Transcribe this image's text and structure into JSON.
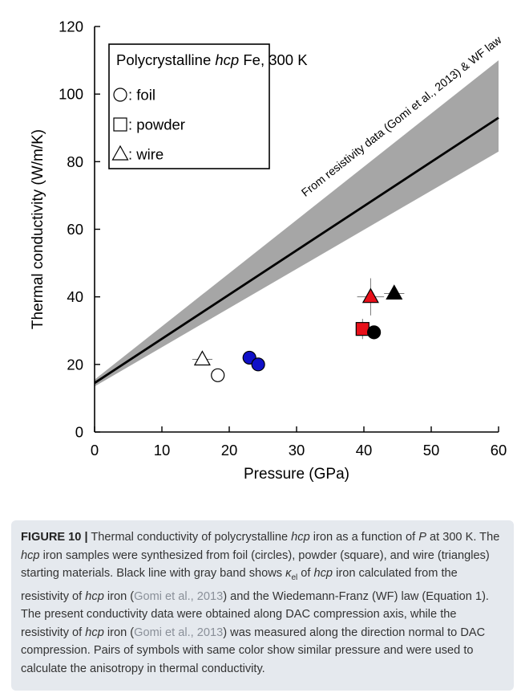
{
  "chart_data": {
    "type": "scatter",
    "xlabel": "Pressure (GPa)",
    "ylabel": "Thermal conductivity (W/m/K)",
    "xlim": [
      0,
      60
    ],
    "ylim": [
      0,
      120
    ],
    "xticks": [
      0,
      10,
      20,
      30,
      40,
      50,
      60
    ],
    "yticks": [
      0,
      20,
      40,
      60,
      80,
      100,
      120
    ],
    "grid": false,
    "legend": {
      "position": "top-left",
      "title": {
        "prefix": "Polycrystalline ",
        "italic": "hcp",
        "suffix": " Fe, 300 K"
      },
      "entries": [
        {
          "marker": "circle",
          "label": ": foil"
        },
        {
          "marker": "square",
          "label": ": powder"
        },
        {
          "marker": "triangle",
          "label": ": wire"
        }
      ]
    },
    "model": {
      "label": "From resistivity data (Gomi et al., 2013) & WF law",
      "line": {
        "x": [
          0,
          60
        ],
        "y": [
          14.5,
          93
        ]
      },
      "band_upper": {
        "x": [
          0,
          60
        ],
        "y": [
          15.5,
          110
        ]
      },
      "band_lower": {
        "x": [
          0,
          60
        ],
        "y": [
          13.5,
          83
        ]
      },
      "line_color": "#000000",
      "band_color": "#a6a6a6"
    },
    "series": [
      {
        "marker": "triangle",
        "color": "#ffffff",
        "x": 16.0,
        "y": 21.5,
        "xerr": 1.5,
        "yerr": 0
      },
      {
        "marker": "circle",
        "color": "#ffffff",
        "x": 18.3,
        "y": 16.8,
        "xerr": 0,
        "yerr": 0
      },
      {
        "marker": "circle",
        "color": "#1010c8",
        "x": 23.0,
        "y": 22.0,
        "xerr": 0,
        "yerr": 0
      },
      {
        "marker": "circle",
        "color": "#1010c8",
        "x": 24.3,
        "y": 20.0,
        "xerr": 0,
        "yerr": 0
      },
      {
        "marker": "square",
        "color": "#e8101a",
        "x": 39.8,
        "y": 30.5,
        "xerr": 0,
        "yerr": 3.0
      },
      {
        "marker": "circle",
        "color": "#000000",
        "x": 41.5,
        "y": 29.5,
        "xerr": 0,
        "yerr": 0
      },
      {
        "marker": "triangle",
        "color": "#e8101a",
        "x": 41.0,
        "y": 40.0,
        "xerr": 2.0,
        "yerr": 5.5
      },
      {
        "marker": "triangle",
        "color": "#000000",
        "x": 44.5,
        "y": 41.0,
        "xerr": 1.5,
        "yerr": 0
      }
    ]
  },
  "caption": {
    "label": "FIGURE 10 |",
    "s1": " Thermal conductivity of polycrystalline ",
    "i1": "hcp",
    "s2": " iron as a function of ",
    "i2": "P",
    "s3": " at 300 K. The ",
    "i3": "hcp",
    "s4": " iron samples were synthesized from foil (circles), powder (square), and wire (triangles) starting materials. Black line with gray band shows ",
    "kappa": "κ",
    "kappa_sub": "el",
    "s5": " of ",
    "i4": "hcp",
    "s6": " iron calculated from the resistivity of ",
    "i5": "hcp",
    "s7": " iron (",
    "ref1": "Gomi et al., 2013",
    "s8": ") and the Wiedemann-Franz (WF) law (Equation 1). The present conductivity data were obtained along DAC compression axis, while the resistivity of ",
    "i6": "hcp",
    "s9": " iron (",
    "ref2": "Gomi et al., 2013",
    "s10": ") was measured along the direction normal to DAC compression. Pairs of symbols with same color show similar pressure and were used to calculate the anisotropy in thermal conductivity."
  }
}
